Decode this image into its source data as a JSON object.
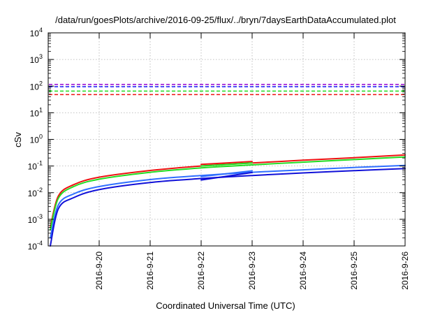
{
  "chart_data": {
    "type": "line",
    "title": "/data/run/goesPlots/archive/2016-09-25/flux/../bryn/7daysEarthDataAccumulated.plot",
    "xlabel": "Coordinated Universal Time (UTC)",
    "ylabel": "cSv",
    "yscale": "log",
    "ylim": [
      0.0001,
      10000
    ],
    "xlim": [
      "2016-9-19",
      "2016-9-26"
    ],
    "grid": true,
    "x_tick_labels": [
      "2016-9-20",
      "2016-9-21",
      "2016-9-22",
      "2016-9-23",
      "2016-9-24",
      "2016-9-25",
      "2016-9-26"
    ],
    "y_tick_labels": [
      {
        "base": "10",
        "exp": "-4"
      },
      {
        "base": "10",
        "exp": "-3"
      },
      {
        "base": "10",
        "exp": "-2"
      },
      {
        "base": "10",
        "exp": "-1"
      },
      {
        "base": "10",
        "exp": "0"
      },
      {
        "base": "10",
        "exp": "1"
      },
      {
        "base": "10",
        "exp": "2"
      },
      {
        "base": "10",
        "exp": "3"
      },
      {
        "base": "10",
        "exp": "4"
      }
    ],
    "limit_lines": [
      {
        "color": "#9400d3",
        "value": 115,
        "dashed": true
      },
      {
        "color": "#1a1aff",
        "value": 95,
        "dashed": true
      },
      {
        "color": "#22dd22",
        "value": 65,
        "dashed": true
      },
      {
        "color": "#ee1111",
        "value": 48,
        "dashed": true
      }
    ],
    "series": [
      {
        "color": "#ee1111",
        "x": [
          "2016-9-19 01:00",
          "2016-9-19 04:48",
          "2016-9-19 12:00",
          "2016-9-20 00:00",
          "2016-9-21 00:00",
          "2016-9-22 00:00",
          "2016-9-23 00:00",
          "2016-9-24 00:00",
          "2016-9-25 00:00",
          "2016-9-26 00:00"
        ],
        "y": [
          0.0005,
          0.0075,
          0.02,
          0.038,
          0.068,
          0.1,
          0.13,
          0.165,
          0.205,
          0.26
        ]
      },
      {
        "color": "#22dd22",
        "x": [
          "2016-9-19 01:00",
          "2016-9-19 04:48",
          "2016-9-19 12:00",
          "2016-9-20 00:00",
          "2016-9-21 00:00",
          "2016-9-22 00:00",
          "2016-9-23 00:00",
          "2016-9-24 00:00",
          "2016-9-25 00:00",
          "2016-9-26 00:00"
        ],
        "y": [
          0.0004,
          0.0062,
          0.017,
          0.032,
          0.058,
          0.085,
          0.11,
          0.14,
          0.175,
          0.22
        ]
      },
      {
        "color": "#2f6fff",
        "x": [
          "2016-9-19 01:00",
          "2016-9-19 04:48",
          "2016-9-19 12:00",
          "2016-9-20 00:00",
          "2016-9-21 00:00",
          "2016-9-22 00:00",
          "2016-9-23 00:00",
          "2016-9-24 00:00",
          "2016-9-25 00:00",
          "2016-9-26 00:00"
        ],
        "y": [
          0.0002,
          0.0035,
          0.009,
          0.017,
          0.031,
          0.044,
          0.058,
          0.072,
          0.088,
          0.105
        ]
      },
      {
        "color": "#1010d8",
        "x": [
          "2016-9-19 01:00",
          "2016-9-19 04:48",
          "2016-9-19 12:00",
          "2016-9-20 00:00",
          "2016-9-21 00:00",
          "2016-9-22 00:00",
          "2016-9-23 00:00",
          "2016-9-24 00:00",
          "2016-9-25 00:00",
          "2016-9-26 00:00"
        ],
        "y": [
          0.0001,
          0.0025,
          0.0065,
          0.013,
          0.024,
          0.034,
          0.044,
          0.055,
          0.067,
          0.08
        ]
      },
      {
        "color": "#ee1111",
        "x": [
          "2016-9-22 00:00",
          "2016-9-23 00:00"
        ],
        "y": [
          0.115,
          0.148
        ]
      },
      {
        "color": "#22dd22",
        "x": [
          "2016-9-22 00:00",
          "2016-9-23 00:00"
        ],
        "y": [
          0.1,
          0.13
        ]
      },
      {
        "color": "#2f6fff",
        "x": [
          "2016-9-22 00:00",
          "2016-9-23 00:00"
        ],
        "y": [
          0.04,
          0.066
        ]
      },
      {
        "color": "#1010d8",
        "x": [
          "2016-9-22 00:00",
          "2016-9-23 00:00"
        ],
        "y": [
          0.03,
          0.057
        ]
      }
    ]
  }
}
